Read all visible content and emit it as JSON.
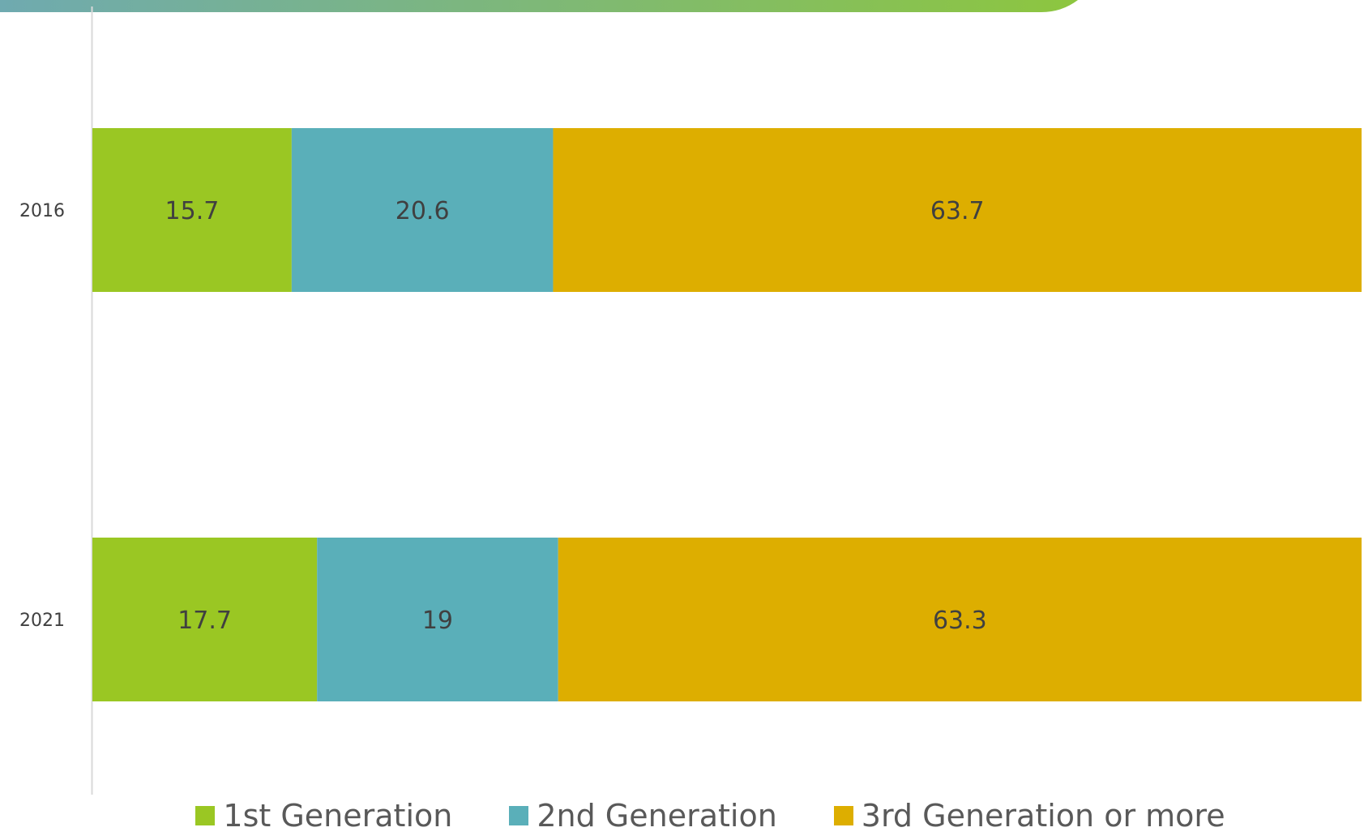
{
  "chart_data": {
    "type": "bar",
    "orientation": "horizontal",
    "stacked": true,
    "categories": [
      "2016",
      "2021"
    ],
    "series": [
      {
        "name": "1st Generation",
        "values": [
          15.7,
          17.7
        ],
        "color": "#9AC723"
      },
      {
        "name": "2nd Generation",
        "values": [
          20.6,
          19
        ],
        "color": "#5AAFB9"
      },
      {
        "name": "3rd Generation or more",
        "values": [
          63.7,
          63.3
        ],
        "color": "#DDAE00"
      }
    ],
    "xlim": [
      0,
      100
    ],
    "grid": false,
    "legend_position": "bottom"
  },
  "decor": {
    "banner_gradient": [
      "#6FAAB0",
      "#8DC63F"
    ]
  }
}
